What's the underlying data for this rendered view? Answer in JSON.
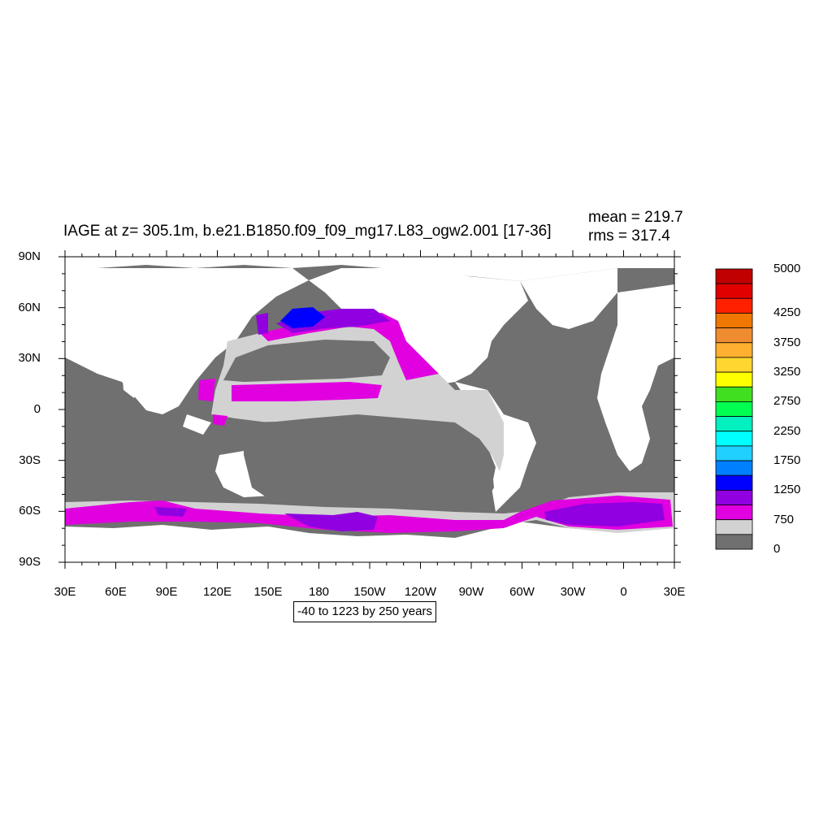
{
  "title": "IAGE at z= 305.1m, b.e21.B1850.f09_f09_mg17.L83_ogw2.001 [17-36]",
  "stats": {
    "mean": "mean = 219.7",
    "rms": "rms = 317.4"
  },
  "range_label": "-40 to 1223 by 250 years",
  "map": {
    "lon_ticks": [
      "30E",
      "60E",
      "90E",
      "120E",
      "150E",
      "180",
      "150W",
      "120W",
      "90W",
      "60W",
      "30W",
      "0",
      "30E"
    ],
    "lat_ticks": [
      "90N",
      "60N",
      "30N",
      "0",
      "30S",
      "60S",
      "90S"
    ]
  },
  "colorbar": {
    "colors": [
      "#c00000",
      "#e00000",
      "#ff2000",
      "#f07800",
      "#f08c30",
      "#ffb030",
      "#ffd530",
      "#ffff00",
      "#40e020",
      "#00ff50",
      "#00f0c0",
      "#00ffff",
      "#20d0ff",
      "#0080ff",
      "#0000ff",
      "#9000e0",
      "#e000e0",
      "#d2d2d2",
      "#707070"
    ],
    "labels": [
      "5000",
      "4250",
      "3750",
      "3250",
      "2750",
      "2250",
      "1750",
      "1250",
      "750",
      "0"
    ]
  },
  "legend_colors": {
    "land": "#ffffff",
    "age_0": "#707070",
    "age_250": "#d2d2d2",
    "age_500": "#e000e0",
    "age_750": "#9000e0",
    "age_1000": "#0000ff"
  }
}
